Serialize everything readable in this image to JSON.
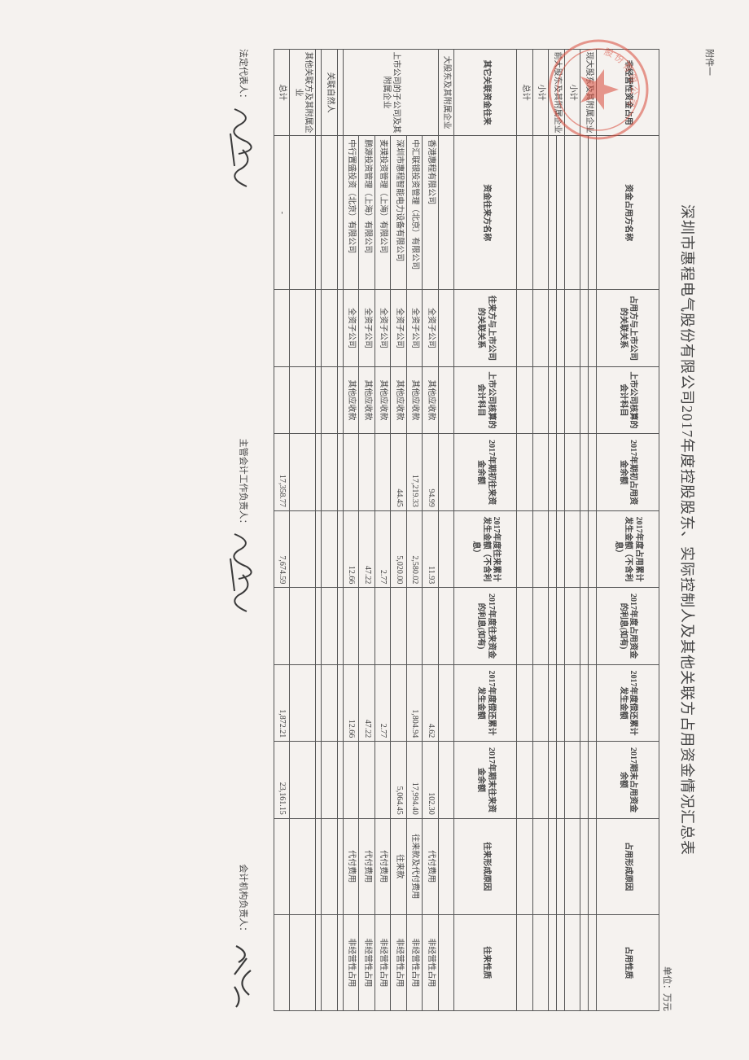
{
  "attachment_label": "附件一",
  "title": "深圳市惠程电气股份有限公司2017年度控股股东、实际控制人及其他关联方占用资金情况汇总表",
  "unit": "单位：万元",
  "section1": {
    "row_labels": {
      "non_op": "非经营性资金占用",
      "cur_major": "现大股东及其附属企业",
      "subtotal1": "小计",
      "prev_major": "前大股东及其附属企业",
      "subtotal2": "小计",
      "total": "总计"
    },
    "headers": {
      "h1": "资金占用方名称",
      "h2": "占用方与上市公司的关联关系",
      "h3": "上市公司核算的会计科目",
      "h4": "2017年期初占用资金余额",
      "h5": "2017年度占用累计发生金额（不含利息）",
      "h6": "2017年度占用资金的利息(如有)",
      "h7": "2017年度偿还累计发生金额",
      "h8": "2017期末占用资金余额",
      "h9": "占用形成原因",
      "h10": "占用性质"
    }
  },
  "section2": {
    "row_labels": {
      "other_related": "其它关联资金往来",
      "major_affil": "大股东及其附属企业",
      "sub_affil": "上市公司的子公司及其附属企业",
      "nat_person": "关联自然人",
      "other_affil": "其他关联方及其附属企业",
      "total": "总计"
    },
    "headers": {
      "h1": "资金往来方名称",
      "h2": "往来方与上市公司的关联关系",
      "h3": "上市公司核算的会计科目",
      "h4": "2017年期初往来资金余额",
      "h5": "2017年度往来累计发生金额（不含利息）",
      "h6": "2017年度往来资金的利息(如有)",
      "h7": "2017年度偿还累计发生金额",
      "h8": "2017年期末往来资金余额",
      "h9": "往来形成原因",
      "h10": "往来性质"
    },
    "rows": [
      {
        "name": "香港惠程有限公司",
        "rel": "全资子公司",
        "acct": "其他应收款",
        "c4": "94.99",
        "c5": "11.93",
        "c6": "",
        "c7": "4.62",
        "c8": "102.30",
        "reason": "代付费用",
        "nature": "非经营性占用"
      },
      {
        "name": "中汇联银投资管理（北京）有限公司",
        "rel": "全资子公司",
        "acct": "其他应收款",
        "c4": "17,219.33",
        "c5": "2,580.02",
        "c6": "",
        "c7": "1,804.94",
        "c8": "17,994.40",
        "reason": "往来款及代付费用",
        "nature": "非经营性占用"
      },
      {
        "name": "深圳市惠程智能电力设备有限公司",
        "rel": "全资子公司",
        "acct": "其他应收款",
        "c4": "44.45",
        "c5": "5,020.00",
        "c6": "",
        "c7": "",
        "c8": "5,064.45",
        "reason": "往来款",
        "nature": "非经营性占用"
      },
      {
        "name": "麦璞投资管理（上海）有限公司",
        "rel": "全资子公司",
        "acct": "其他应收款",
        "c4": "",
        "c5": "2.77",
        "c6": "",
        "c7": "2.77",
        "c8": "",
        "reason": "代付费用",
        "nature": "非经营性占用"
      },
      {
        "name": "鹏源投资管理（上海）有限公司",
        "rel": "全资子公司",
        "acct": "其他应收款",
        "c4": "",
        "c5": "47.22",
        "c6": "",
        "c7": "47.22",
        "c8": "",
        "reason": "代付费用",
        "nature": "非经营性占用"
      },
      {
        "name": "中行置盛投资（北京）有限公司",
        "rel": "全资子公司",
        "acct": "其他应收款",
        "c4": "",
        "c5": "12.66",
        "c6": "",
        "c7": "12.66",
        "c8": "",
        "reason": "代付费用",
        "nature": "非经营性占用"
      }
    ],
    "totals": {
      "name": "-",
      "c4": "17,358.77",
      "c5": "7,674.59",
      "c7": "1,872.21",
      "c8": "23,161.15"
    }
  },
  "footer": {
    "legal_rep": "法定代表人：",
    "chief_acc": "主管会计工作负责人：",
    "acc_org": "会计机构负责人："
  },
  "colors": {
    "border": "#555555",
    "text": "#444444",
    "bg": "#f5f2ef",
    "seal": "#d84a3a",
    "sig": "#3a3a3a"
  }
}
